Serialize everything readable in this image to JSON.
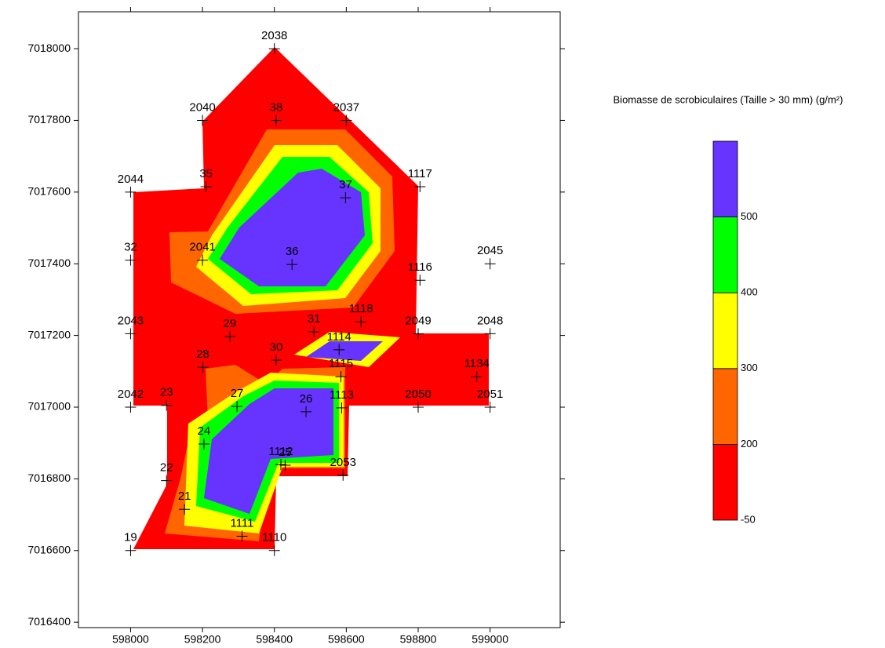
{
  "chart_data": {
    "type": "contour",
    "colorbar_title": "Biomasse de scrobiculaires (Taille > 30 mm) (g/m²)",
    "labels": [
      "2038",
      "2040",
      "38",
      "2037",
      "2044",
      "35",
      "1117",
      "37",
      "32",
      "2041",
      "36",
      "1116",
      "2045",
      "2043",
      "29",
      "31",
      "1118",
      "2049",
      "2048",
      "1114",
      "30",
      "28",
      "1115",
      "1134",
      "2042",
      "23",
      "27",
      "26",
      "1113",
      "2050",
      "2051",
      "24",
      "1112",
      "25",
      "2053",
      "22",
      "21",
      "1111",
      "1110",
      "19"
    ],
    "x": [
      598400,
      598200,
      598405,
      598600,
      598000,
      598210,
      598805,
      598598,
      598000,
      598200,
      598449,
      598805,
      599000,
      598000,
      598276,
      598510,
      598641,
      598800,
      599000,
      598580,
      598405,
      598201,
      598585,
      598963,
      598000,
      598100,
      598296,
      598488,
      598587,
      598800,
      599000,
      598204,
      598418,
      598430,
      598591,
      598100,
      598150,
      598310,
      598400,
      598000
    ],
    "y": [
      7018000,
      7017800,
      7017800,
      7017800,
      7017600,
      7017615,
      7017615,
      7017584,
      7017410,
      7017410,
      7017398,
      7017354,
      7017400,
      7017205,
      7017197,
      7017210,
      7017238,
      7017205,
      7017205,
      7017160,
      7017131,
      7017111,
      7017085,
      7017085,
      7017000,
      7017005,
      7017002,
      7016987,
      7016998,
      7017000,
      7017000,
      7016897,
      7016840,
      7016838,
      7016810,
      7016795,
      7016715,
      7016640,
      7016600,
      7016600
    ],
    "xlim": [
      597855,
      599195
    ],
    "ylim": [
      7016385,
      7018103
    ],
    "xticks": [
      598000,
      598200,
      598400,
      598600,
      598800,
      599000
    ],
    "yticks": [
      7016400,
      7016600,
      7016800,
      7017000,
      7017200,
      7017400,
      7017600,
      7017800,
      7018000
    ],
    "levels": [
      -50,
      200,
      300,
      400,
      500
    ],
    "level_colors": [
      "#ff0000",
      "#ff6600",
      "#ffff00",
      "#00ff00",
      "#6633ff"
    ]
  }
}
